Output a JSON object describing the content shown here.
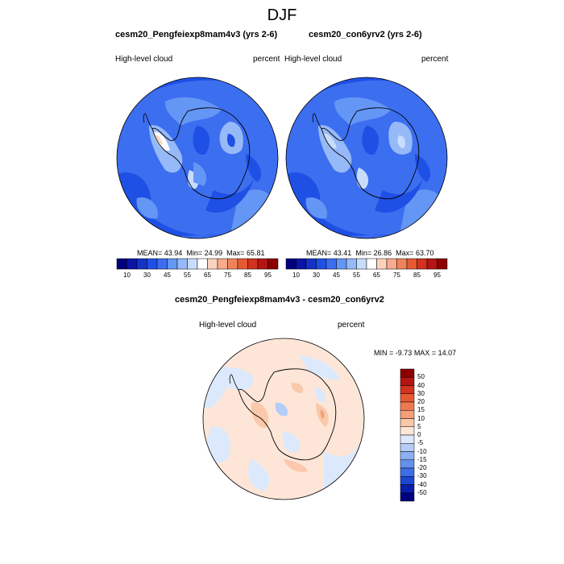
{
  "figure": {
    "title": "DJF"
  },
  "panels": [
    {
      "case": "cesm20_Pengfeiexp8mam4v3 (yrs 2-6)",
      "variable": "High-level cloud",
      "units": "percent",
      "mean_label": "MEAN=",
      "mean": "43.94",
      "min_label": "Min=",
      "min": "24.99",
      "max_label": "Max=",
      "max": "65.81"
    },
    {
      "case": "cesm20_con6yrv2 (yrs 2-6)",
      "variable": "High-level cloud",
      "units": "percent",
      "mean_label": "MEAN=",
      "mean": "43.41",
      "min_label": "Min=",
      "min": "26.86",
      "max_label": "Max=",
      "max": "63.70"
    }
  ],
  "diff_panel": {
    "title": "cesm20_Pengfeiexp8mam4v3 - cesm20_con6yrv2",
    "variable": "High-level cloud",
    "units": "percent",
    "min_label": "MIN =",
    "min": "-9.73",
    "max_label": "MAX =",
    "max": "14.07"
  },
  "colorbar_top": {
    "tick_labels": [
      "10",
      "30",
      "45",
      "55",
      "65",
      "75",
      "85",
      "95"
    ],
    "colors": [
      "#00007f",
      "#0a14a6",
      "#1432c8",
      "#1e50e6",
      "#3c6ef0",
      "#6496f5",
      "#96b9f8",
      "#c8dcfc",
      "#ffffff",
      "#fcd2be",
      "#f7aa8c",
      "#f0825a",
      "#e65a32",
      "#d2321e",
      "#b41414",
      "#8c0000"
    ]
  },
  "colorbar_diff": {
    "labels": [
      "50",
      "40",
      "30",
      "20",
      "15",
      "10",
      "5",
      "0",
      "-5",
      "-10",
      "-15",
      "-20",
      "-30",
      "-40",
      "-50"
    ],
    "colors": [
      "#8c0000",
      "#b41414",
      "#d2321e",
      "#e65a32",
      "#f07850",
      "#f5a078",
      "#fac8aa",
      "#fde6d8",
      "#dce9fc",
      "#b4cdf8",
      "#8cb0f2",
      "#6490ec",
      "#3c6ee6",
      "#1e46d2",
      "#0a1eaa",
      "#00007f"
    ]
  }
}
